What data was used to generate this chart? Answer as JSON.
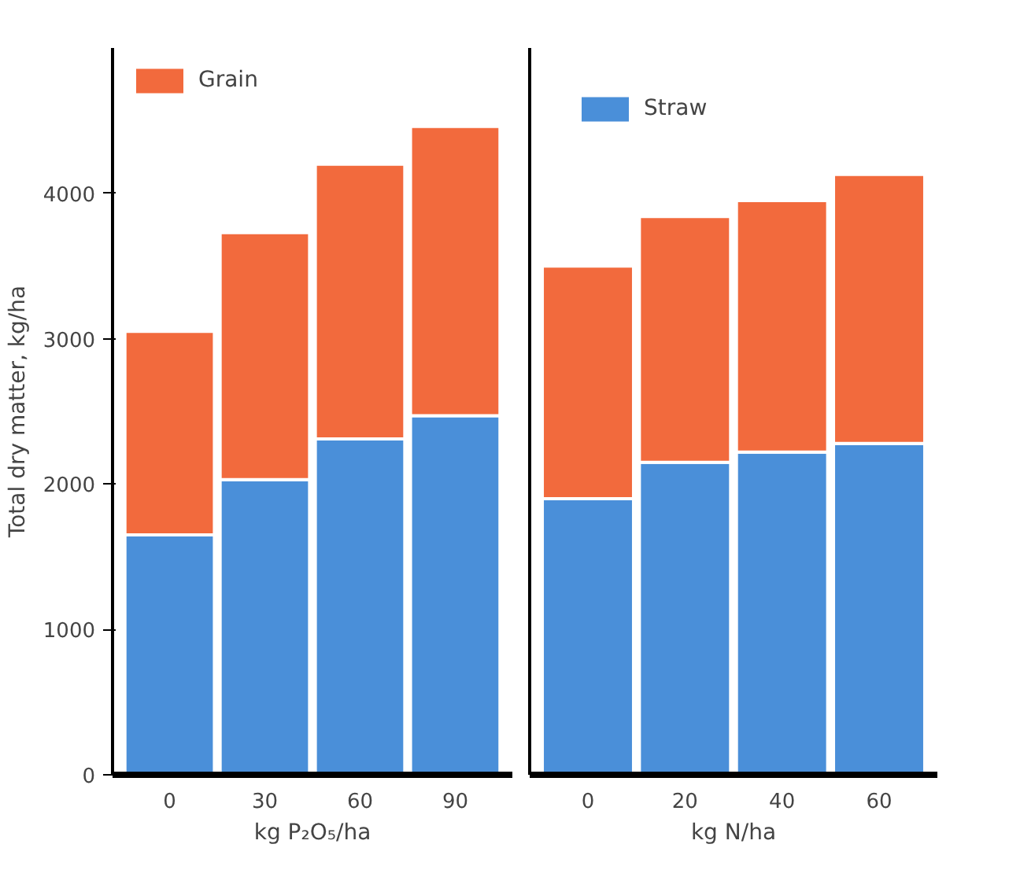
{
  "chart_data": [
    {
      "type": "bar",
      "stacked": true,
      "xlabel": "kg P₂O₅/ha",
      "ylabel": "Total dry matter, kg/ha",
      "categories": [
        "0",
        "30",
        "60",
        "90"
      ],
      "ylim": [
        0,
        5000
      ],
      "yticks": [
        0,
        1000,
        2000,
        3000,
        4000
      ],
      "grid": false,
      "legend": "top left",
      "series": [
        {
          "color": "#4a8fd9",
          "values": [
            1650,
            2030,
            2310,
            2470
          ]
        },
        {
          "name": "Grain",
          "color": "#f26a3d",
          "values": [
            1400,
            1700,
            1890,
            1990
          ]
        }
      ]
    },
    {
      "type": "bar",
      "stacked": true,
      "xlabel": "kg N/ha",
      "categories": [
        "0",
        "20",
        "40",
        "60"
      ],
      "ylim": [
        0,
        5000
      ],
      "yticks": [
        0,
        1000,
        2000,
        3000,
        4000
      ],
      "grid": false,
      "legend": "top left",
      "tick_labels": "x",
      "series": [
        {
          "name": "Straw",
          "color": "#4a8fd9",
          "values": [
            1900,
            2150,
            2220,
            2280
          ]
        },
        {
          "color": "#f26a3d",
          "values": [
            1600,
            1690,
            1730,
            1850
          ]
        }
      ]
    }
  ]
}
